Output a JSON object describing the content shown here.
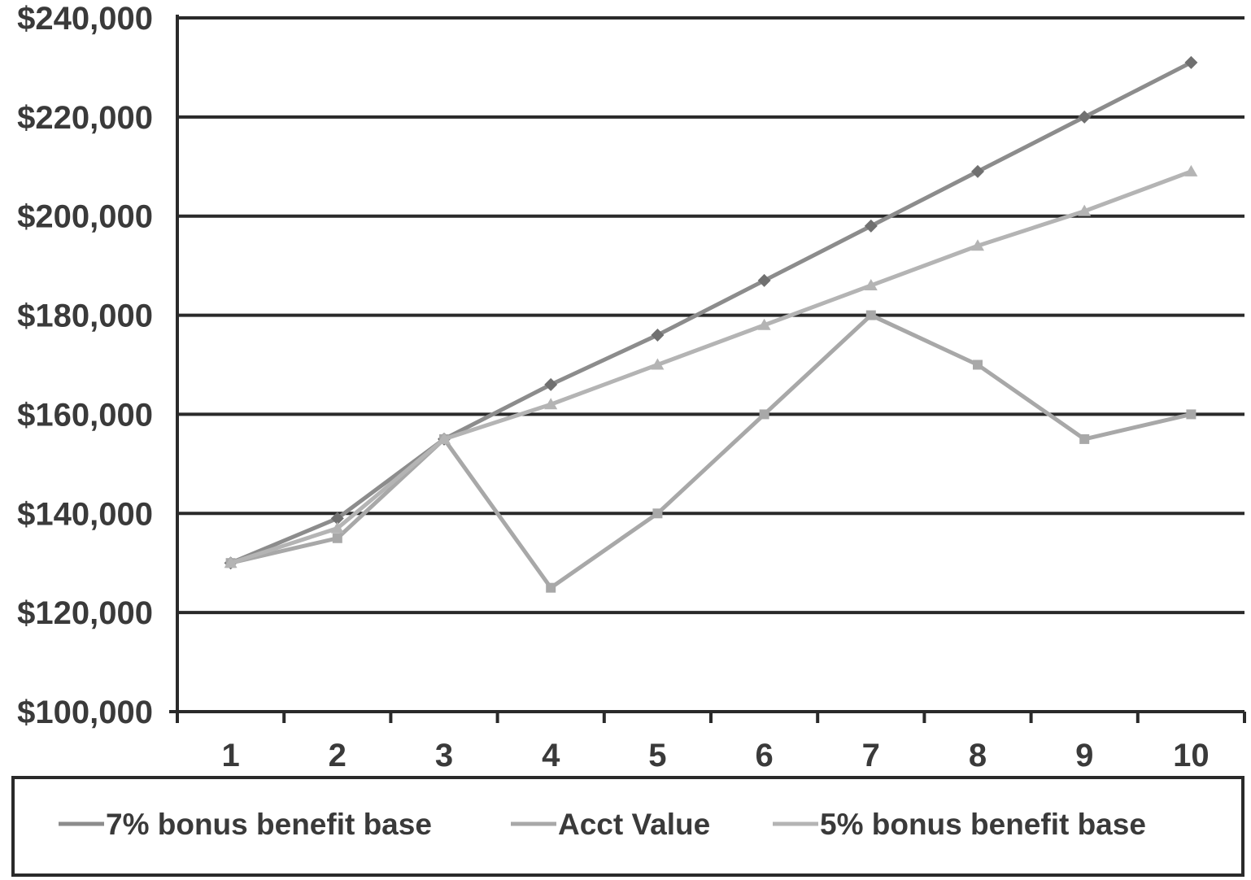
{
  "chart_data": {
    "type": "line",
    "categories": [
      "1",
      "2",
      "3",
      "4",
      "5",
      "6",
      "7",
      "8",
      "9",
      "10"
    ],
    "series": [
      {
        "name": "7% bonus benefit base",
        "values": [
          130000,
          139000,
          155000,
          166000,
          176000,
          187000,
          198000,
          209000,
          220000,
          231000
        ],
        "color": "#8c8c8c"
      },
      {
        "name": "Acct Value",
        "values": [
          130000,
          135000,
          155000,
          125000,
          140000,
          160000,
          180000,
          170000,
          155000,
          160000
        ],
        "color": "#a8a8a8"
      },
      {
        "name": "5% bonus benefit  base",
        "values": [
          130000,
          137000,
          155000,
          162000,
          170000,
          178000,
          186000,
          194000,
          201000,
          209000
        ],
        "color": "#b4b4b4"
      }
    ],
    "yticks": [
      "$100,000",
      "$120,000",
      "$140,000",
      "$160,000",
      "$180,000",
      "$200,000",
      "$220,000",
      "$240,000"
    ],
    "ylim": [
      100000,
      240000
    ],
    "grid": true,
    "legend": "bottom"
  },
  "colors": {
    "gridline": "#2a2a2a",
    "axis": "#2a2a2a",
    "text": "#3a3a3a"
  }
}
